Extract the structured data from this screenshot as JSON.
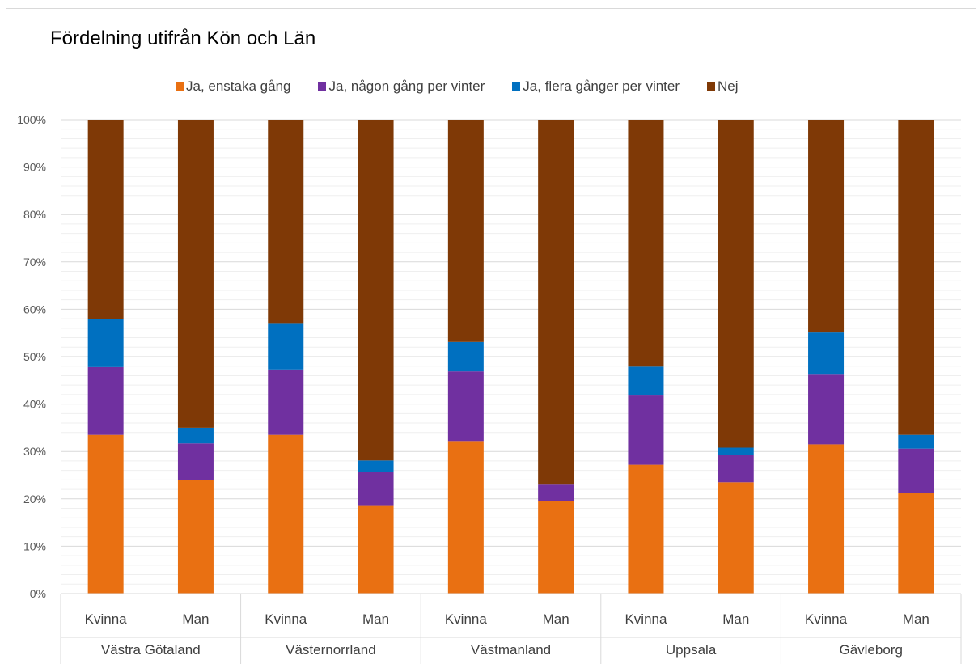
{
  "chart_data": {
    "type": "stacked-bar-100",
    "title": "Fördelning utifrån Kön och Län",
    "legend_position": "top",
    "grid": true,
    "ylim": [
      0,
      100
    ],
    "y_ticks": [
      "0%",
      "10%",
      "20%",
      "30%",
      "40%",
      "50%",
      "60%",
      "70%",
      "80%",
      "90%",
      "100%"
    ],
    "groups": [
      "Västra Götaland",
      "Västernorrland",
      "Västmanland",
      "Uppsala",
      "Gävleborg"
    ],
    "subcategories": [
      "Kvinna",
      "Man",
      "Kvinna",
      "Man",
      "Kvinna",
      "Man",
      "Kvinna",
      "Man",
      "Kvinna",
      "Man"
    ],
    "series": [
      {
        "name": "Ja, enstaka gång",
        "color": "#E97012",
        "values": [
          33.5,
          24.0,
          33.5,
          18.5,
          32.2,
          19.5,
          27.2,
          23.5,
          31.5,
          21.3
        ]
      },
      {
        "name": "Ja, någon gång per vinter",
        "color": "#7030A0",
        "values": [
          14.3,
          7.7,
          13.8,
          7.2,
          14.7,
          3.5,
          14.6,
          5.7,
          14.7,
          9.3
        ]
      },
      {
        "name": "Ja, flera gånger per vinter",
        "color": "#0070C0",
        "values": [
          10.1,
          3.3,
          9.8,
          2.4,
          6.2,
          0.0,
          6.1,
          1.6,
          8.9,
          2.9
        ]
      },
      {
        "name": "Nej",
        "color": "#7F3906",
        "values": [
          42.1,
          65.0,
          42.9,
          71.9,
          46.9,
          77.0,
          52.1,
          69.2,
          44.9,
          66.5
        ]
      }
    ]
  }
}
